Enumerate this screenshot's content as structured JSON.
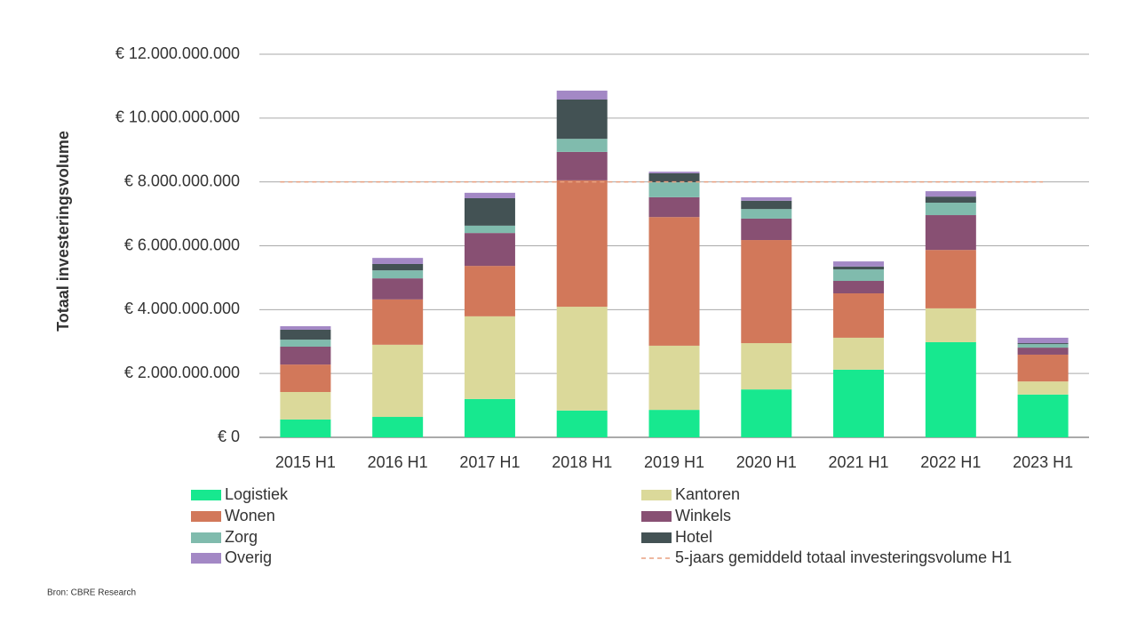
{
  "chart_data": {
    "type": "stacked_bar",
    "y_label": "Totaal investeringsvolume",
    "source": "Bron: CBRE Research",
    "categories": [
      "2015 H1",
      "2016 H1",
      "2017 H1",
      "2018 H1",
      "2019 H1",
      "2020 H1",
      "2021 H1",
      "2022 H1",
      "2023 H1"
    ],
    "series": [
      {
        "name": "Logistiek",
        "color": "#17e88f",
        "values": [
          560000000,
          640000000,
          1200000000,
          840000000,
          860000000,
          1500000000,
          2120000000,
          2980000000,
          1340000000
        ]
      },
      {
        "name": "Kantoren",
        "color": "#dbd99a",
        "values": [
          860000000,
          2260000000,
          2590000000,
          3250000000,
          2010000000,
          1450000000,
          1000000000,
          1060000000,
          410000000
        ]
      },
      {
        "name": "Wonen",
        "color": "#d2785a",
        "values": [
          860000000,
          1420000000,
          1580000000,
          3960000000,
          4030000000,
          3230000000,
          1390000000,
          1830000000,
          840000000
        ]
      },
      {
        "name": "Winkels",
        "color": "#885073",
        "values": [
          560000000,
          660000000,
          1030000000,
          890000000,
          620000000,
          670000000,
          390000000,
          1090000000,
          220000000
        ]
      },
      {
        "name": "Zorg",
        "color": "#80bbad",
        "values": [
          220000000,
          250000000,
          230000000,
          410000000,
          470000000,
          300000000,
          360000000,
          390000000,
          110000000
        ]
      },
      {
        "name": "Hotel",
        "color": "#435254",
        "values": [
          310000000,
          200000000,
          860000000,
          1230000000,
          280000000,
          260000000,
          90000000,
          190000000,
          30000000
        ]
      },
      {
        "name": "Overig",
        "color": "#a388c5",
        "values": [
          110000000,
          190000000,
          170000000,
          280000000,
          50000000,
          110000000,
          160000000,
          170000000,
          170000000
        ]
      }
    ],
    "reference_line": {
      "name": "5-jaars gemiddeld totaal investeringsvolume H1",
      "value": 8000000000,
      "color": "#e8a080"
    },
    "ylim": [
      0,
      12000000000
    ],
    "yticks": [
      {
        "value": 0,
        "label": "€ 0"
      },
      {
        "value": 2000000000,
        "label": "€ 2.000.000.000"
      },
      {
        "value": 4000000000,
        "label": "€ 4.000.000.000"
      },
      {
        "value": 6000000000,
        "label": "€ 6.000.000.000"
      },
      {
        "value": 8000000000,
        "label": "€ 8.000.000.000"
      },
      {
        "value": 10000000000,
        "label": "€ 10.000.000.000"
      },
      {
        "value": 12000000000,
        "label": "€ 12.000.000.000"
      }
    ],
    "grid": true
  }
}
